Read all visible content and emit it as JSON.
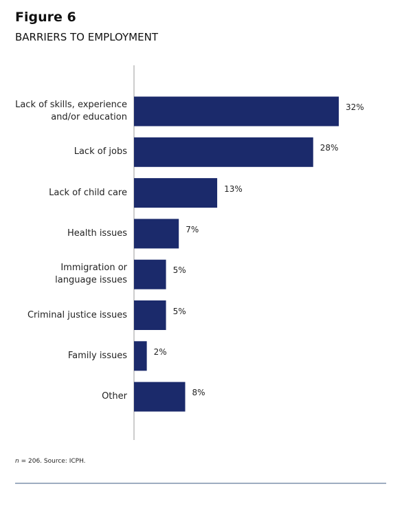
{
  "chart_data": {
    "type": "bar",
    "orientation": "horizontal",
    "title": "Figure 6",
    "subtitle": "BARRIERS TO EMPLOYMENT",
    "categories": [
      "Lack of skills, experience\nand/or education",
      "Lack of jobs",
      "Lack of child care",
      "Health issues",
      "Immigration or\nlanguage issues",
      "Criminal justice issues",
      "Family issues",
      "Other"
    ],
    "values": [
      32,
      28,
      13,
      7,
      5,
      5,
      2,
      8
    ],
    "value_labels": [
      "32%",
      "28%",
      "13%",
      "7%",
      "5%",
      "5%",
      "2%",
      "8%"
    ],
    "color": "#1b2a6b",
    "xlim": [
      0,
      32
    ],
    "note": {
      "symbol": "n",
      "text": "= 206. Source: ICPH."
    }
  }
}
